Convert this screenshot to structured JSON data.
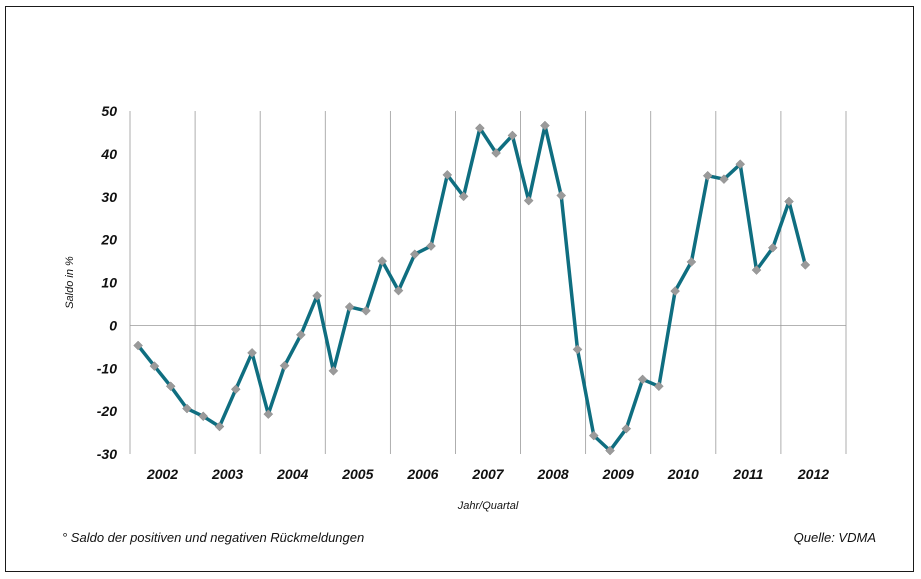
{
  "chart_data": {
    "type": "line",
    "xlabel": "Jahr/Quartal",
    "ylabel": "Saldo in %",
    "ylim": [
      -30,
      50
    ],
    "yticks": [
      50,
      40,
      30,
      20,
      10,
      0,
      -10,
      -20,
      -30
    ],
    "year_labels": [
      "2002",
      "2003",
      "2004",
      "2005",
      "2006",
      "2007",
      "2008",
      "2009",
      "2010",
      "2011",
      "2012"
    ],
    "grid": "vertical lines between years",
    "series": [
      {
        "color": "#0f6e80",
        "marker_color": "#9a9a9a",
        "values": [
          -4.7,
          -9.5,
          -14.2,
          -19.4,
          -21.2,
          -23.6,
          -14.9,
          -6.4,
          -20.7,
          -9.4,
          -2.2,
          6.9,
          -10.6,
          4.3,
          3.4,
          15.0,
          8.1,
          16.6,
          18.5,
          35.1,
          30.1,
          46.0,
          40.2,
          44.3,
          29.1,
          46.6,
          30.3,
          -5.6,
          -25.7,
          -29.2,
          -24.1,
          -12.6,
          -14.2,
          8.0,
          14.8,
          34.9,
          34.1,
          37.6,
          12.9,
          18.1,
          28.9,
          14.1
        ]
      }
    ]
  },
  "footnote_left": "° Saldo der positiven und negativen Rückmeldungen",
  "footnote_right": "Quelle: VDMA"
}
